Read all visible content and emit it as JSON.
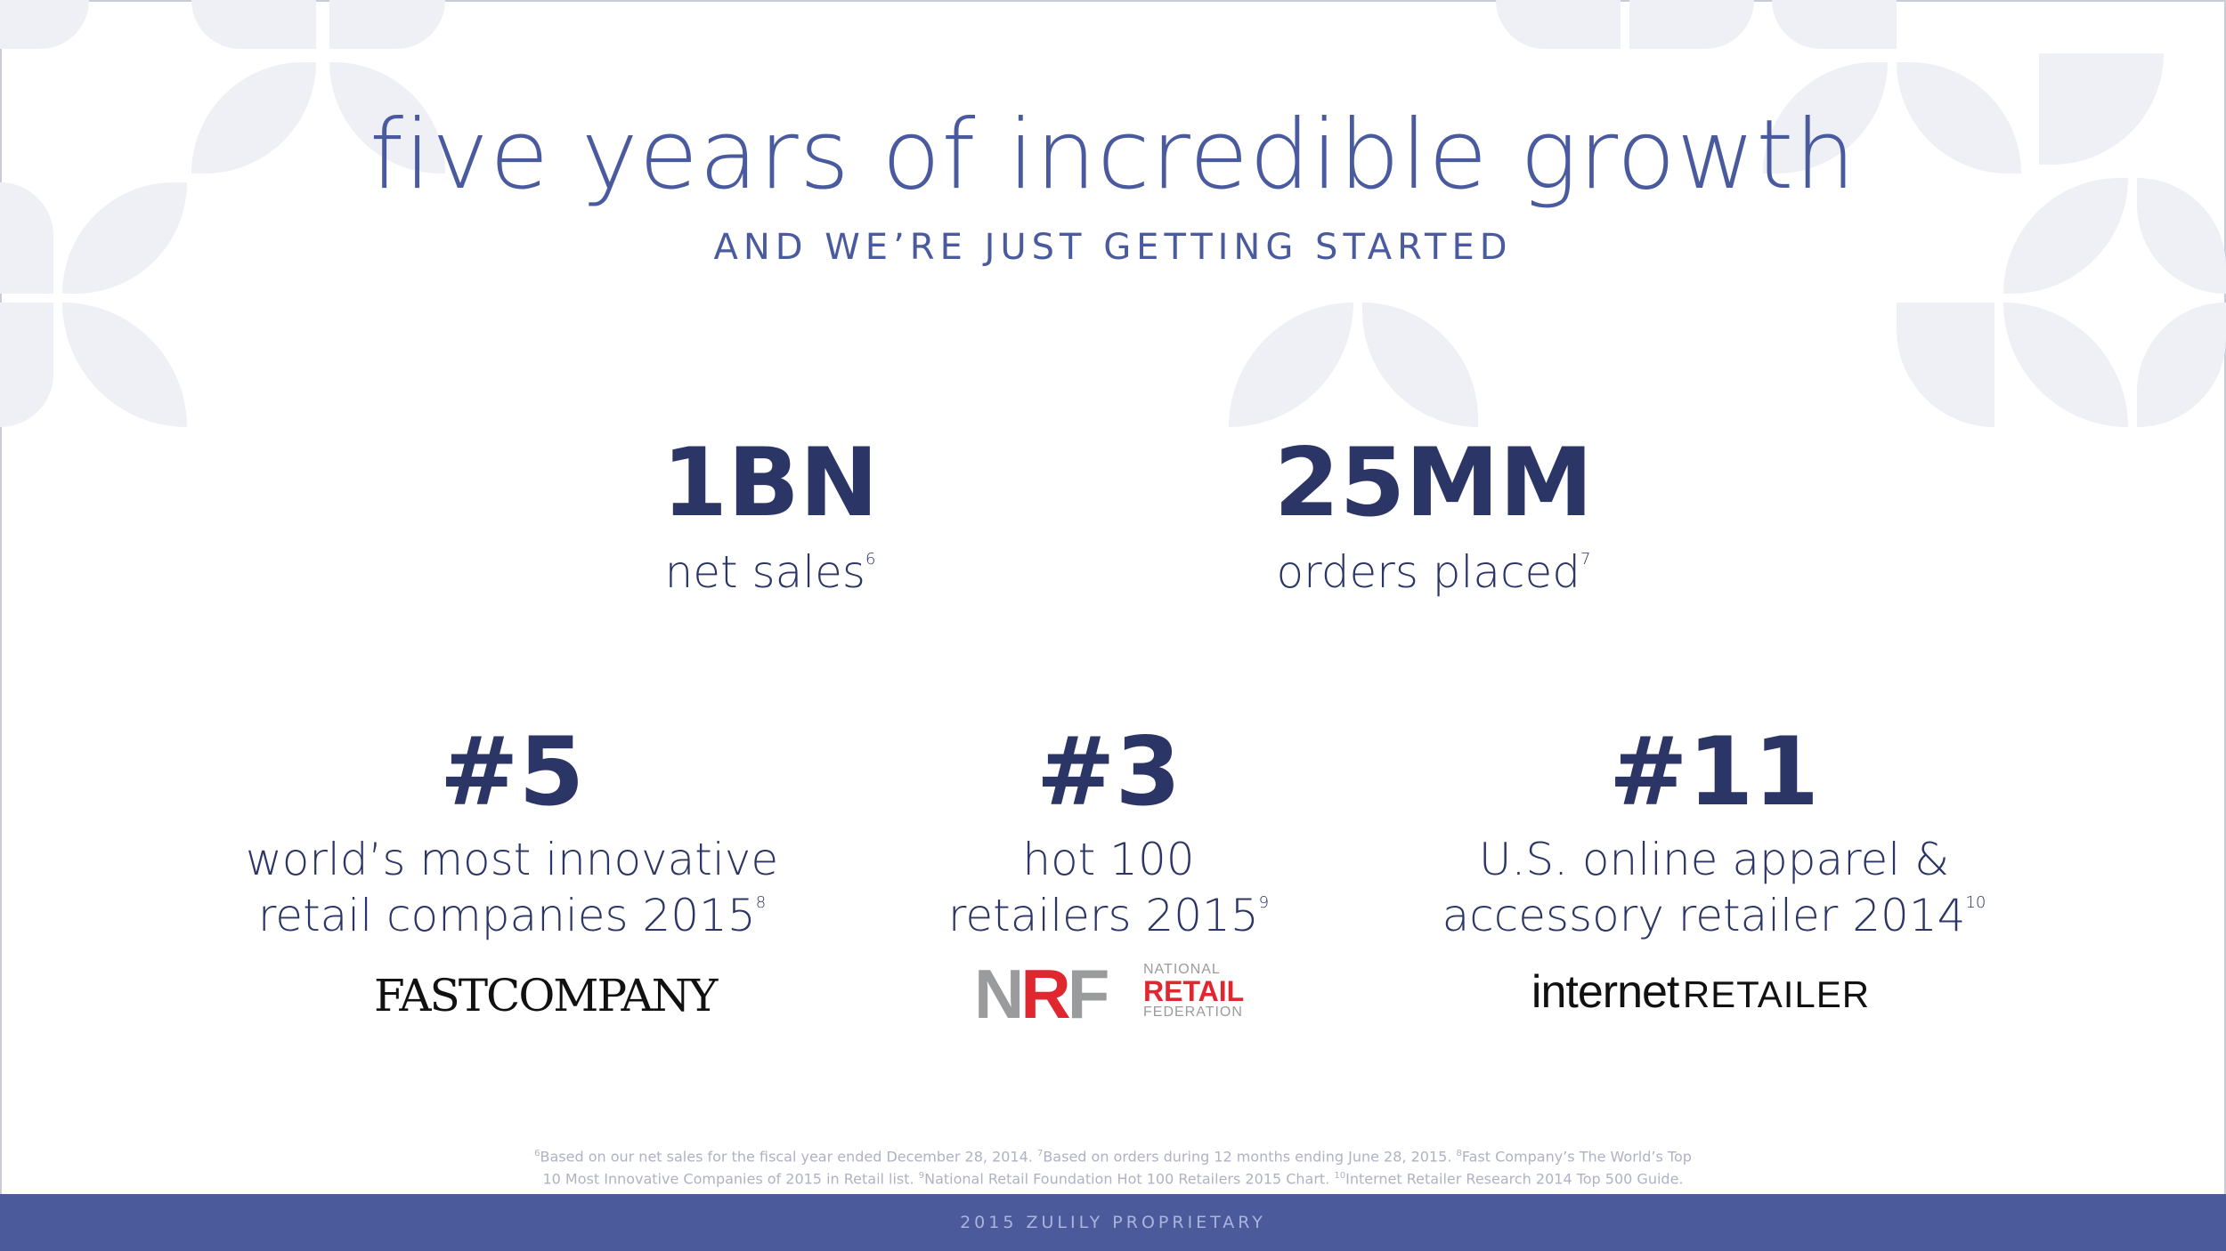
{
  "title": "five years of incredible growth",
  "subtitle": "AND WE’RE JUST GETTING STARTED",
  "stats": [
    {
      "value": "1BN",
      "caption": "net sales",
      "note": "6"
    },
    {
      "value": "25MM",
      "caption": "orders placed",
      "note": "7"
    }
  ],
  "rankings": [
    {
      "rank": "#5",
      "line1": "world’s most innovative",
      "line2": "retail companies 2015",
      "note": "8",
      "logo": "FASTCOMPANY"
    },
    {
      "rank": "#3",
      "line1": "hot 100",
      "line2": "retailers 2015",
      "note": "9",
      "logo_main_a": "N",
      "logo_main_b": "R",
      "logo_main_c": "F",
      "logo_line1": "NATIONAL",
      "logo_line2": "RETAIL",
      "logo_line3": "FEDERATION"
    },
    {
      "rank": "#11",
      "line1": "U.S. online apparel &",
      "line2": "accessory retailer 2014",
      "note": "10",
      "logo_a": "internet",
      "logo_b": "RETAILER"
    }
  ],
  "footnotes": {
    "n6": "6",
    "t6": "Based on our net sales for the fiscal year ended December 28, 2014. ",
    "n7": "7",
    "t7": "Based on orders during 12 months ending June 28, 2015. ",
    "n8": "8",
    "t8": "Fast Company’s The World’s Top",
    "t8b": "10 Most Innovative Companies of 2015 in Retail list. ",
    "n9": "9",
    "t9": "National Retail Foundation Hot 100 Retailers 2015 Chart. ",
    "n10": "10",
    "t10": "Internet Retailer Research 2014 Top 500 Guide."
  },
  "footer_band": "2015 ZULILY PROPRIETARY",
  "colors": {
    "title": "#4a5a9e",
    "stat": "#2b3566",
    "band": "#4b5a9b",
    "pattern": "#eef0f6",
    "nrf_red": "#e0262f"
  }
}
